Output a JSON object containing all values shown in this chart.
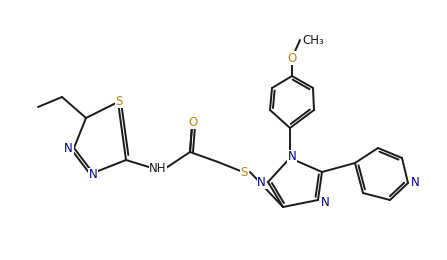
{
  "bg_color": "#ffffff",
  "bond_color": "#1a1a1a",
  "atom_colors": {
    "S": "#b8860b",
    "N": "#00008b",
    "O": "#b8860b",
    "C": "#1a1a1a"
  },
  "line_width": 1.4,
  "font_size": 8.5,
  "fig_width": 4.47,
  "fig_height": 2.6,
  "dpi": 100
}
